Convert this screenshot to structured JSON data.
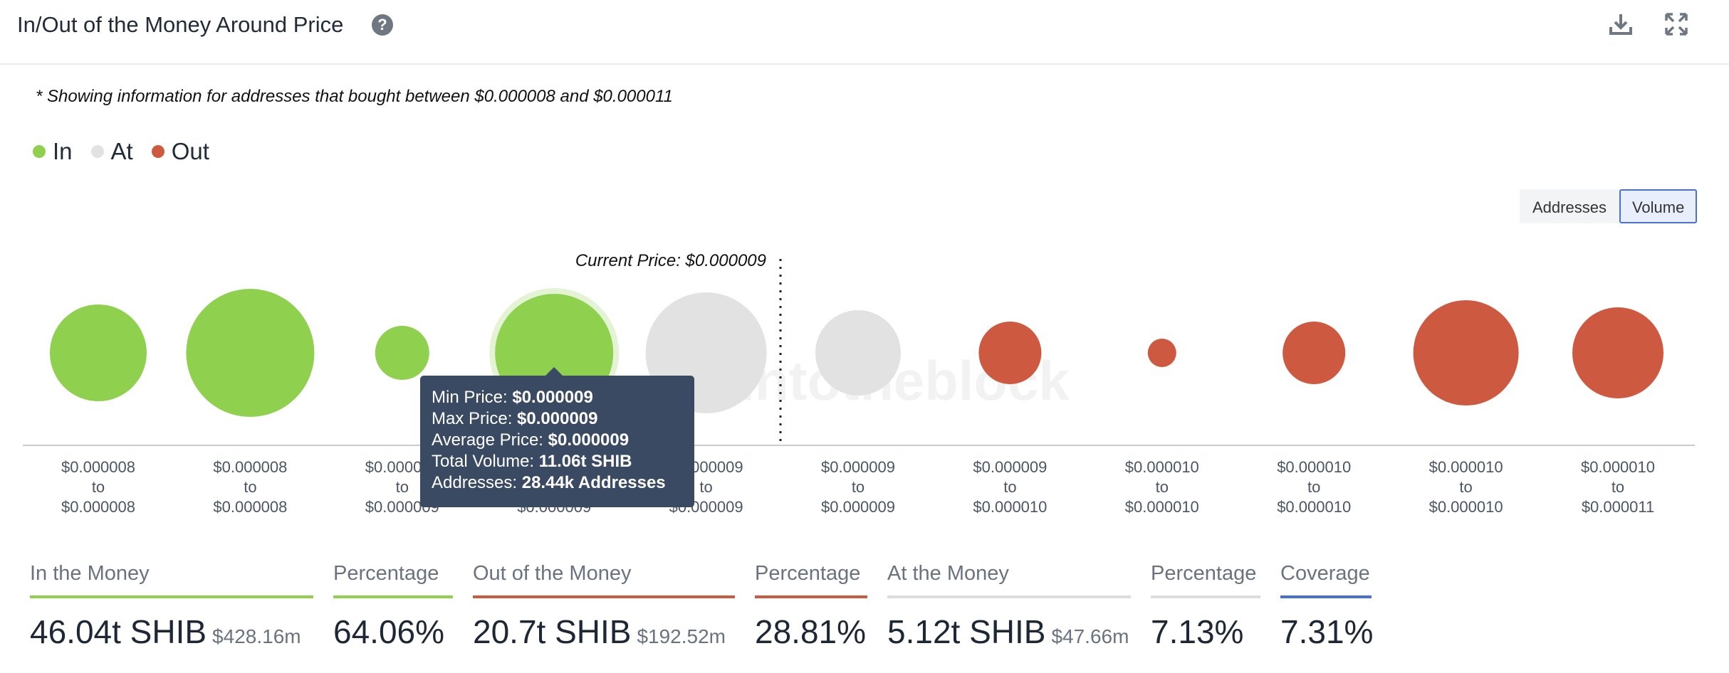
{
  "header": {
    "title": "In/Out of the Money Around Price",
    "help_icon": "question-circle-icon",
    "download_icon": "download-icon",
    "expand_icon": "expand-icon"
  },
  "note": "* Showing information for addresses that bought between $0.000008 and $0.000011",
  "legend": [
    {
      "label": "In",
      "color": "#8fd14f"
    },
    {
      "label": "At",
      "color": "#e2e2e2"
    },
    {
      "label": "Out",
      "color": "#cd5a40"
    }
  ],
  "toggle": {
    "addresses_label": "Addresses",
    "volume_label": "Volume",
    "active": "Volume"
  },
  "chart_data": {
    "type": "scatter",
    "current_price_label": "Current Price: $0.000009",
    "current_price_after_bucket": 5,
    "buckets": [
      {
        "range": [
          "$0.000008",
          "to",
          "$0.000008"
        ],
        "status": "In",
        "size": 68
      },
      {
        "range": [
          "$0.000008",
          "to",
          "$0.000008"
        ],
        "status": "In",
        "size": 90
      },
      {
        "range": [
          "$0.000009",
          "to",
          "$0.000009"
        ],
        "status": "In",
        "size": 38
      },
      {
        "range": [
          "$0.000009",
          "to",
          "$0.000009"
        ],
        "status": "In",
        "size": 83
      },
      {
        "range": [
          "$0.000009",
          "to",
          "$0.000009"
        ],
        "status": "At",
        "size": 85
      },
      {
        "range": [
          "$0.000009",
          "to",
          "$0.000009"
        ],
        "status": "At",
        "size": 60
      },
      {
        "range": [
          "$0.000009",
          "to",
          "$0.000010"
        ],
        "status": "Out",
        "size": 44
      },
      {
        "range": [
          "$0.000010",
          "to",
          "$0.000010"
        ],
        "status": "Out",
        "size": 20
      },
      {
        "range": [
          "$0.000010",
          "to",
          "$0.000010"
        ],
        "status": "Out",
        "size": 44
      },
      {
        "range": [
          "$0.000010",
          "to",
          "$0.000010"
        ],
        "status": "Out",
        "size": 74
      },
      {
        "range": [
          "$0.000010",
          "to",
          "$0.000011"
        ],
        "status": "Out",
        "size": 64
      }
    ],
    "colors": {
      "In": "#8fd14f",
      "At": "#e2e2e2",
      "Out": "#cd5a40"
    },
    "highlighted_bucket": 3,
    "watermark": "intotheblock"
  },
  "tooltip": {
    "rows": [
      {
        "label": "Min Price: ",
        "value": "$0.000009"
      },
      {
        "label": "Max Price: ",
        "value": "$0.000009"
      },
      {
        "label": "Average Price: ",
        "value": "$0.000009"
      },
      {
        "label": "Total Volume: ",
        "value": "11.06t SHIB"
      },
      {
        "label": "Addresses: ",
        "value": "28.44k Addresses"
      }
    ]
  },
  "stats": {
    "in_money": {
      "label": "In the Money",
      "value": "46.04t SHIB",
      "sub": "$428.16m",
      "color": "#8fd14f"
    },
    "in_pct": {
      "label": "Percentage",
      "value": "64.06%",
      "color": "#8fd14f"
    },
    "out_money": {
      "label": "Out of the Money",
      "value": "20.7t SHIB",
      "sub": "$192.52m",
      "color": "#cd5a40"
    },
    "out_pct": {
      "label": "Percentage",
      "value": "28.81%",
      "color": "#cd5a40"
    },
    "at_money": {
      "label": "At the Money",
      "value": "5.12t SHIB",
      "sub": "$47.66m",
      "color": "#dcdcdc"
    },
    "at_pct": {
      "label": "Percentage",
      "value": "7.13%",
      "color": "#dcdcdc"
    },
    "coverage": {
      "label": "Coverage",
      "value": "7.31%",
      "color": "#4a6fd6"
    }
  }
}
